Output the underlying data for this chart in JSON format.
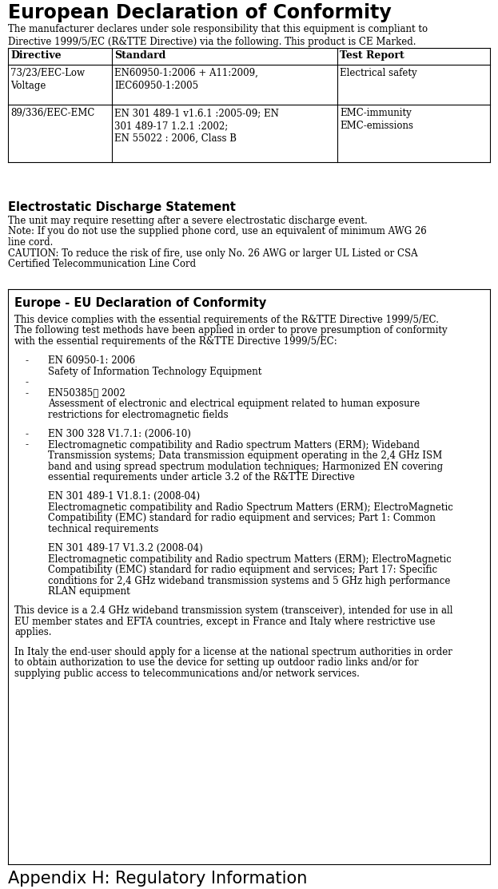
{
  "bg_color": "#ffffff",
  "title": "European Declaration of Conformity",
  "intro_text": "The manufacturer declares under sole responsibility that this equipment is compliant to\nDirective 1999/5/EC (R&TTE Directive) via the following. This product is CE Marked.",
  "table_headers": [
    "Directive",
    "Standard",
    "Test Report"
  ],
  "table_row1": [
    "73/23/EEC-Low\nVoltage",
    "EN60950-1:2006 + A11:2009,\nIEC60950-1:2005",
    "Electrical safety"
  ],
  "table_row2_col1": "89/336/EEC-EMC",
  "table_row2_col2": "EN 301 489-1 v1.6.1 :2005-09; EN\n301 489-17 1.2.1 :2002;\nEN 55022 : 2006, Class B",
  "table_row2_col3": "EMC-immunity\nEMC-emissions",
  "section2_title": "Electrostatic Discharge Statement",
  "section2_line1": "The unit may require resetting after a severe electrostatic discharge event.",
  "section2_line2": "Note: If you do not use the supplied phone cord, use an equivalent of minimum AWG 26",
  "section2_line3": "line cord.",
  "section2_line4": "CAUTION: To reduce the risk of fire, use only No. 26 AWG or larger UL Listed or CSA",
  "section2_line5": "Certified Telecommunication Line Cord",
  "section3_title": "Europe - EU Declaration of Conformity",
  "section3_p1": "This device complies with the essential requirements of the R&TTE Directive 1999/5/EC.",
  "section3_p2": "The following test methods have been applied in order to prove presumption of conformity",
  "section3_p3": "with the essential requirements of the R&TTE Directive 1999/5/EC:",
  "b1_dash": "-",
  "b1_title": "EN 60950-1: 2006",
  "b1_body": "Safety of Information Technology Equipment",
  "b2_dash": "-",
  "b3_dash": "-",
  "b3_title": "EN50385： 2002",
  "b3_body1": "Assessment of electronic and electrical equipment related to human exposure",
  "b3_body2": "restrictions for electromagnetic fields",
  "b4_dash": "-",
  "b4_title": "EN 300 328 V1.7.1: (2006-10)",
  "b5_dash": "-",
  "b5_body1": "Electromagnetic compatibility and Radio spectrum Matters (ERM); Wideband",
  "b5_body2": "Transmission systems; Data transmission equipment operating in the 2,4 GHz ISM",
  "b5_body3": "band and using spread spectrum modulation techniques; Harmonized EN covering",
  "b5_body4": "essential requirements under article 3.2 of the R&TTE Directive",
  "p1_title": "EN 301 489-1 V1.8.1: (2008-04)",
  "p1_body1": "Electromagnetic compatibility and Radio Spectrum Matters (ERM); ElectroMagnetic",
  "p1_body2": "Compatibility (EMC) standard for radio equipment and services; Part 1: Common",
  "p1_body3": "technical requirements",
  "p2_title": "EN 301 489-17 V1.3.2 (2008-04)",
  "p2_body1": "Electromagnetic compatibility and Radio spectrum Matters (ERM); ElectroMagnetic",
  "p2_body2": "Compatibility (EMC) standard for radio equipment and services; Part 17: Specific",
  "p2_body3": "conditions for 2,4 GHz wideband transmission systems and 5 GHz high performance",
  "p2_body4": "RLAN equipment",
  "c1_line1": "This device is a 2.4 GHz wideband transmission system (transceiver), intended for use in all",
  "c1_line2": "EU member states and EFTA countries, except in France and Italy where restrictive use",
  "c1_line3": "applies.",
  "c2_line1": "In Italy the end-user should apply for a license at the national spectrum authorities in order",
  "c2_line2": "to obtain authorization to use the device for setting up outdoor radio links and/or for",
  "c2_line3": "supplying public access to telecommunications and/or network services.",
  "footer": "Appendix H: Regulatory Information",
  "lm": 10,
  "rm": 613,
  "body_size": 8.5,
  "title1_size": 17,
  "section_title_size": 10.5,
  "footer_size": 15
}
